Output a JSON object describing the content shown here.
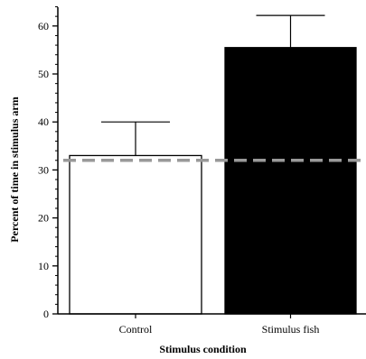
{
  "chart_data": {
    "type": "bar",
    "title": "",
    "xlabel": "Stimulus condition",
    "ylabel": "Percent of time in stimulus arm",
    "categories": [
      "Control",
      "Stimulus fish"
    ],
    "series": [
      {
        "values": [
          33,
          55.5
        ],
        "error_plus": [
          7,
          6.7
        ],
        "fill_colors": [
          "#ffffff",
          "#000000"
        ]
      }
    ],
    "ylim": [
      0,
      65
    ],
    "yticks": [
      0,
      10,
      20,
      30,
      40,
      50,
      60
    ],
    "y_minor_step": 2,
    "reference_line": {
      "value": 32,
      "style": "dashed",
      "color": "#999999"
    },
    "grid": false,
    "legend": "none"
  }
}
